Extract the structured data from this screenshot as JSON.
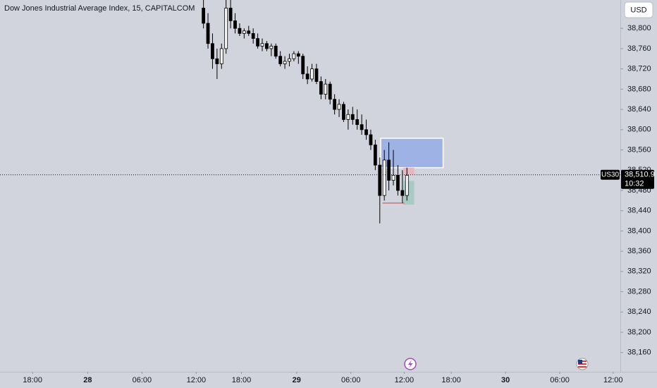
{
  "chart_data": {
    "type": "candlestick",
    "title": "Dow Jones Industrial Average Index, 15, CAPITALCOM",
    "currency": "USD",
    "countdown": "10:32",
    "last_price": {
      "value": 38510.9,
      "label": "38,510.9"
    },
    "x": [
      22.5,
      23.0,
      23.5,
      24.0,
      24.5,
      25.0,
      25.5,
      26.0,
      26.5,
      27.0,
      27.5,
      28.0,
      28.5,
      29.0,
      29.5,
      30.0,
      30.5,
      31.0,
      31.5,
      32.0,
      32.5,
      33.0,
      33.5,
      34.0,
      34.5,
      35.0,
      35.5,
      36.0,
      36.5,
      37.0,
      37.5,
      38.0,
      38.5,
      39.0,
      39.5,
      40.0,
      40.5,
      41.0,
      41.5,
      42.0,
      42.5,
      43.0,
      43.5,
      44.0,
      44.5,
      45.0
    ],
    "series": [
      {
        "name": "US30",
        "up_color": "#ffffff",
        "down_color": "#000000",
        "open": [
          38840,
          38810,
          38770,
          38740,
          38730,
          38760,
          38840,
          38815,
          38800,
          38790,
          38795,
          38790,
          38780,
          38765,
          38770,
          38760,
          38765,
          38745,
          38730,
          38735,
          38740,
          38750,
          38745,
          38710,
          38700,
          38720,
          38695,
          38670,
          38690,
          38660,
          38640,
          38650,
          38620,
          38630,
          38620,
          38610,
          38600,
          38590,
          38570,
          38530,
          38470,
          38540,
          38500,
          38510,
          38480,
          38470
        ],
        "high": [
          38856,
          38830,
          38790,
          38760,
          38770,
          38856,
          38856,
          38830,
          38810,
          38800,
          38805,
          38800,
          38790,
          38780,
          38775,
          38770,
          38770,
          38755,
          38745,
          38750,
          38755,
          38755,
          38750,
          38725,
          38730,
          38730,
          38705,
          38700,
          38695,
          38670,
          38660,
          38655,
          38640,
          38645,
          38640,
          38630,
          38620,
          38600,
          38580,
          38545,
          38560,
          38575,
          38560,
          38530,
          38520,
          38525
        ],
        "low": [
          38800,
          38760,
          38720,
          38700,
          38720,
          38750,
          38800,
          38790,
          38785,
          38780,
          38785,
          38770,
          38760,
          38755,
          38755,
          38745,
          38740,
          38725,
          38720,
          38725,
          38735,
          38730,
          38700,
          38690,
          38695,
          38690,
          38660,
          38660,
          38650,
          38630,
          38625,
          38615,
          38600,
          38610,
          38600,
          38590,
          38580,
          38560,
          38520,
          38415,
          38460,
          38480,
          38490,
          38470,
          38455,
          38460
        ],
        "close": [
          38810,
          38770,
          38740,
          38730,
          38760,
          38840,
          38815,
          38800,
          38790,
          38795,
          38790,
          38780,
          38765,
          38770,
          38760,
          38765,
          38745,
          38730,
          38735,
          38740,
          38750,
          38745,
          38710,
          38700,
          38720,
          38695,
          38670,
          38690,
          38660,
          38640,
          38650,
          38620,
          38630,
          38620,
          38610,
          38600,
          38590,
          38570,
          38530,
          38470,
          38540,
          38500,
          38510,
          38480,
          38470,
          38510
        ]
      }
    ],
    "zones": [
      {
        "x": [
          42.1,
          49.0
        ],
        "y": [
          38525,
          38583
        ],
        "color": "#9fb2e6"
      },
      {
        "x": [
          44.6,
          45.8
        ],
        "y": [
          38511,
          38525
        ],
        "color": "#e3b9bd"
      },
      {
        "x": [
          44.6,
          45.8
        ],
        "y": [
          38452,
          38499
        ],
        "color": "#a9c9c3"
      }
    ],
    "lines": [
      {
        "x": [
          42.3,
          44.7
        ],
        "y": 38455,
        "color": "#e53935"
      }
    ],
    "xlim": [
      0,
      68.6
    ],
    "ylim": [
      38122,
      38856
    ],
    "xticks": [
      {
        "value": 3.6,
        "label": "18:00"
      },
      {
        "value": 9.7,
        "label": "28"
      },
      {
        "value": 15.7,
        "label": "06:00"
      },
      {
        "value": 21.7,
        "label": "12:00"
      },
      {
        "value": 26.7,
        "label": "18:00"
      },
      {
        "value": 32.8,
        "label": "29"
      },
      {
        "value": 38.8,
        "label": "06:00"
      },
      {
        "value": 44.7,
        "label": "12:00"
      },
      {
        "value": 49.9,
        "label": "18:00"
      },
      {
        "value": 55.9,
        "label": "30"
      },
      {
        "value": 61.9,
        "label": "06:00"
      },
      {
        "value": 67.8,
        "label": "12:00"
      }
    ],
    "yticks": [
      {
        "value": 38800,
        "label": "38,800"
      },
      {
        "value": 38760,
        "label": "38,760"
      },
      {
        "value": 38720,
        "label": "38,720"
      },
      {
        "value": 38680,
        "label": "38,680"
      },
      {
        "value": 38640,
        "label": "38,640"
      },
      {
        "value": 38600,
        "label": "38,600"
      },
      {
        "value": 38560,
        "label": "38,560"
      },
      {
        "value": 38520,
        "label": "38,520"
      },
      {
        "value": 38480,
        "label": "38,480"
      },
      {
        "value": 38440,
        "label": "38,440"
      },
      {
        "value": 38400,
        "label": "38,400"
      },
      {
        "value": 38360,
        "label": "38,360"
      },
      {
        "value": 38320,
        "label": "38,320"
      },
      {
        "value": 38280,
        "label": "38,280"
      },
      {
        "value": 38240,
        "label": "38,240"
      },
      {
        "value": 38200,
        "label": "38,200"
      },
      {
        "value": 38160,
        "label": "38,160"
      }
    ],
    "grid": false
  }
}
